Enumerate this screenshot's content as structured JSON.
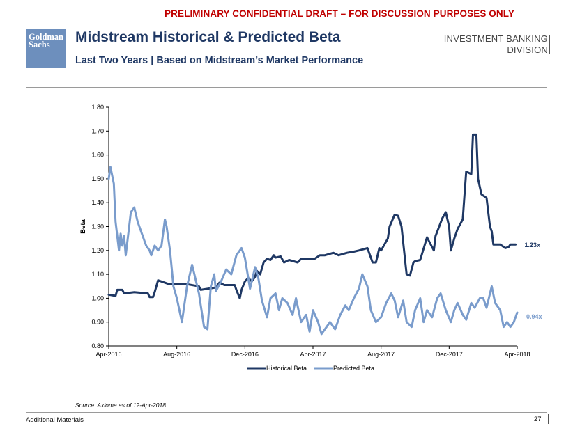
{
  "header": {
    "banner": "PRELIMINARY CONFIDENTIAL DRAFT – FOR DISCUSSION PURPOSES ONLY",
    "logo_line1": "Goldman",
    "logo_line2": "Sachs",
    "title": "Midstream Historical & Predicted Beta",
    "subtitle": "Last Two Years | Based on Midstream’s Market Performance",
    "division_line1": "INVESTMENT BANKING",
    "division_line2": "DIVISION"
  },
  "colors": {
    "historical": "#1f3864",
    "predicted": "#7a9ccc",
    "title": "#1f3864",
    "banner": "#c00000"
  },
  "chart_data": {
    "type": "line",
    "title": "",
    "xlabel": "",
    "ylabel": "Beta",
    "ylim": [
      0.8,
      1.8
    ],
    "xlim": [
      0,
      24
    ],
    "y_ticks": [
      "0.80",
      "0.90",
      "1.00",
      "1.10",
      "1.20",
      "1.30",
      "1.40",
      "1.50",
      "1.60",
      "1.70",
      "1.80"
    ],
    "x_ticks": [
      {
        "value": 0,
        "label": "Apr-2016"
      },
      {
        "value": 4,
        "label": "Aug-2016"
      },
      {
        "value": 8,
        "label": "Dec-2016"
      },
      {
        "value": 12,
        "label": "Apr-2017"
      },
      {
        "value": 16,
        "label": "Aug-2017"
      },
      {
        "value": 20,
        "label": "Dec-2017"
      },
      {
        "value": 24,
        "label": "Apr-2018"
      }
    ],
    "series": [
      {
        "name": "Historical Beta",
        "end_label": "1.23x",
        "x": [
          0.0,
          0.4,
          0.5,
          0.8,
          0.9,
          1.5,
          2.3,
          2.4,
          2.6,
          2.7,
          2.9,
          3.5,
          4.5,
          5.3,
          5.4,
          6.3,
          6.5,
          6.8,
          7.4,
          7.5,
          7.7,
          7.8,
          8.0,
          8.2,
          8.4,
          8.6,
          8.7,
          8.9,
          9.1,
          9.3,
          9.5,
          9.7,
          9.8,
          10.1,
          10.3,
          10.6,
          11.1,
          11.3,
          12.1,
          12.4,
          12.7,
          13.2,
          13.5,
          14.0,
          14.4,
          14.7,
          15.2,
          15.5,
          15.7,
          15.9,
          16.0,
          16.4,
          16.5,
          16.8,
          17.0,
          17.2,
          17.5,
          17.7,
          17.9,
          18.0,
          18.3,
          18.7,
          19.1,
          19.2,
          19.6,
          19.8,
          20.0,
          20.1,
          20.3,
          20.5,
          20.8,
          20.9,
          21.0,
          21.3,
          21.4,
          21.6,
          21.7,
          21.9,
          22.2,
          22.4,
          22.5,
          22.6,
          22.7,
          23.0,
          23.3,
          23.5,
          23.6,
          23.9
        ],
        "y": [
          1.015,
          1.01,
          1.035,
          1.035,
          1.02,
          1.025,
          1.02,
          1.005,
          1.005,
          1.025,
          1.075,
          1.06,
          1.06,
          1.05,
          1.035,
          1.045,
          1.065,
          1.055,
          1.055,
          1.035,
          1.0,
          1.035,
          1.07,
          1.085,
          1.07,
          1.09,
          1.115,
          1.1,
          1.15,
          1.165,
          1.16,
          1.18,
          1.17,
          1.175,
          1.15,
          1.16,
          1.15,
          1.165,
          1.165,
          1.18,
          1.18,
          1.19,
          1.18,
          1.19,
          1.195,
          1.2,
          1.21,
          1.15,
          1.15,
          1.21,
          1.2,
          1.25,
          1.3,
          1.35,
          1.345,
          1.3,
          1.1,
          1.095,
          1.15,
          1.155,
          1.16,
          1.255,
          1.2,
          1.26,
          1.335,
          1.36,
          1.3,
          1.2,
          1.25,
          1.29,
          1.33,
          1.43,
          1.53,
          1.52,
          1.685,
          1.685,
          1.5,
          1.435,
          1.42,
          1.3,
          1.28,
          1.225,
          1.225,
          1.225,
          1.21,
          1.215,
          1.225,
          1.225
        ]
      },
      {
        "name": "Predicted Beta",
        "end_label": "0.94x",
        "x": [
          0.0,
          0.1,
          0.3,
          0.4,
          0.6,
          0.7,
          0.8,
          0.9,
          1.0,
          1.2,
          1.3,
          1.5,
          1.7,
          2.0,
          2.2,
          2.4,
          2.5,
          2.7,
          2.9,
          3.1,
          3.3,
          3.4,
          3.6,
          3.8,
          4.0,
          4.3,
          4.6,
          4.9,
          5.1,
          5.3,
          5.6,
          5.8,
          6.0,
          6.2,
          6.3,
          6.6,
          6.9,
          7.2,
          7.5,
          7.8,
          8.0,
          8.3,
          8.6,
          8.8,
          9.0,
          9.3,
          9.5,
          9.8,
          10.0,
          10.2,
          10.5,
          10.8,
          11.0,
          11.3,
          11.6,
          11.8,
          12.0,
          12.3,
          12.5,
          12.8,
          13.0,
          13.3,
          13.6,
          13.9,
          14.1,
          14.4,
          14.7,
          14.9,
          15.2,
          15.4,
          15.7,
          16.0,
          16.3,
          16.6,
          16.8,
          17.0,
          17.3,
          17.5,
          17.8,
          18.0,
          18.3,
          18.5,
          18.7,
          19.0,
          19.3,
          19.5,
          19.8,
          20.1,
          20.3,
          20.5,
          20.8,
          21.0,
          21.3,
          21.5,
          21.8,
          22.0,
          22.2,
          22.5,
          22.7,
          23.0,
          23.2,
          23.4,
          23.6,
          23.8,
          24.0
        ],
        "y": [
          1.5,
          1.55,
          1.48,
          1.32,
          1.2,
          1.27,
          1.22,
          1.26,
          1.18,
          1.3,
          1.36,
          1.38,
          1.32,
          1.26,
          1.22,
          1.2,
          1.18,
          1.22,
          1.2,
          1.22,
          1.33,
          1.3,
          1.2,
          1.05,
          1.0,
          0.9,
          1.05,
          1.14,
          1.08,
          1.02,
          0.88,
          0.87,
          1.05,
          1.1,
          1.03,
          1.07,
          1.12,
          1.1,
          1.18,
          1.21,
          1.17,
          1.04,
          1.13,
          1.08,
          0.99,
          0.92,
          1.0,
          1.02,
          0.95,
          1.0,
          0.98,
          0.93,
          1.0,
          0.9,
          0.93,
          0.86,
          0.95,
          0.9,
          0.85,
          0.88,
          0.9,
          0.87,
          0.93,
          0.97,
          0.95,
          1.0,
          1.04,
          1.1,
          1.05,
          0.95,
          0.9,
          0.92,
          0.98,
          1.02,
          0.99,
          0.92,
          0.99,
          0.9,
          0.88,
          0.95,
          1.0,
          0.9,
          0.95,
          0.92,
          1.0,
          1.02,
          0.95,
          0.9,
          0.95,
          0.98,
          0.93,
          0.91,
          0.98,
          0.96,
          1.0,
          1.0,
          0.96,
          1.05,
          0.98,
          0.95,
          0.88,
          0.9,
          0.88,
          0.9,
          0.94
        ]
      }
    ]
  },
  "footer": {
    "source": "Source: Axioma as of 12-Apr-2018",
    "left_text": "Additional Materials",
    "page_number": "27"
  }
}
